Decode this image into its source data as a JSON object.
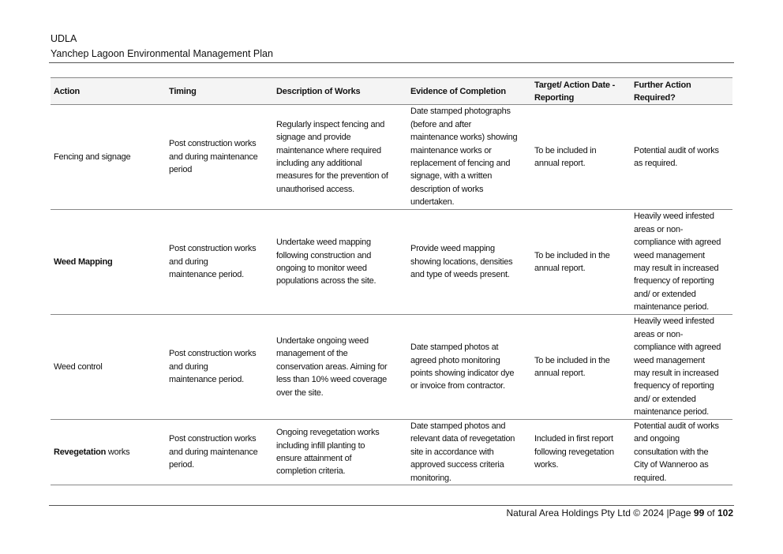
{
  "header": {
    "org": "UDLA",
    "title": "Yanchep Lagoon Environmental Management Plan"
  },
  "table": {
    "columns": [
      "Action",
      "Timing",
      "Description of Works",
      "Evidence of Completion",
      "Target/ Action Date -\nReporting",
      "Further Action\nRequired?"
    ],
    "rows": [
      {
        "action_bold": "",
        "action_rest": "Fencing and signage",
        "timing": "Post construction works\nand during maintenance\nperiod",
        "description": "Regularly inspect fencing and\nsignage and provide\nmaintenance where required\nincluding any additional\nmeasures for the prevention of\nunauthorised access.",
        "evidence": "Date stamped photographs\n(before and after\nmaintenance works) showing\nmaintenance works or\nreplacement of fencing and\nsignage, with a written\ndescription of works\nundertaken.",
        "target": "To be included in\nannual report.",
        "further": "Potential audit of works\nas required."
      },
      {
        "action_bold": "Weed Mapping",
        "action_rest": "",
        "timing": "Post construction works\nand during\nmaintenance period.",
        "description": "Undertake weed mapping\nfollowing construction and\nongoing to monitor weed\npopulations across the site.",
        "evidence": "Provide weed mapping\nshowing locations, densities\nand type of weeds present.",
        "target": "To be included in the\nannual report.",
        "further": "Heavily weed infested\nareas or non-\ncompliance with agreed\nweed management\nmay result in increased\nfrequency of reporting\nand/ or extended\nmaintenance period."
      },
      {
        "action_bold": "",
        "action_rest": "Weed control",
        "timing": "Post construction works\nand during\nmaintenance period.",
        "description": "Undertake ongoing weed\nmanagement of the\nconservation areas. Aiming for\nless than 10% weed coverage\nover the site.",
        "evidence": "Date stamped photos at\nagreed photo monitoring\npoints showing indicator dye\nor invoice from contractor.",
        "target": "To be included in the\nannual report.",
        "further": "Heavily weed infested\nareas or non-\ncompliance with agreed\nweed management\nmay result in increased\nfrequency of reporting\nand/ or extended\nmaintenance period."
      },
      {
        "action_bold": "Revegetation",
        "action_rest": " works",
        "timing": "Post construction works\nand during maintenance\nperiod.",
        "description": "Ongoing revegetation works\nincluding infill planting to\nensure attainment of\ncompletion criteria.",
        "evidence": "Date stamped photos and\nrelevant data of revegetation\nsite in accordance with\napproved success criteria\nmonitoring.",
        "target": "Included in first report\nfollowing revegetation\nworks.",
        "further": "Potential audit of works\nand ongoing\nconsultation with the\nCity of Wanneroo as\nrequired."
      }
    ]
  },
  "footer": {
    "company": "Natural Area Holdings Pty Ltd © 2024 |Page ",
    "page": "99",
    "of": " of ",
    "total": "102"
  }
}
